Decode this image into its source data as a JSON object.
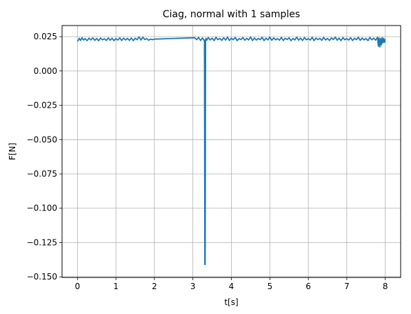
{
  "chart_data": {
    "type": "line",
    "title": "Ciag, normal with 1 samples",
    "xlabel": "t[s]",
    "ylabel": "F[N]",
    "xlim": [
      -0.4,
      8.4
    ],
    "ylim": [
      -0.1504,
      0.0331
    ],
    "grid": true,
    "x_ticks": [
      0,
      1,
      2,
      3,
      4,
      5,
      6,
      7,
      8
    ],
    "x_tick_labels": [
      "0",
      "1",
      "2",
      "3",
      "4",
      "5",
      "6",
      "7",
      "8"
    ],
    "y_ticks": [
      0.025,
      0.0,
      -0.025,
      -0.05,
      -0.075,
      -0.1,
      -0.125,
      -0.15
    ],
    "y_tick_labels": [
      "0.025",
      "0.000",
      "−0.025",
      "−0.050",
      "−0.075",
      "−0.100",
      "−0.125",
      "−0.150"
    ],
    "colors": {
      "series": "#1f77b4",
      "grid": "#b0b0b0"
    },
    "series": [
      {
        "x": [
          0.0,
          0.05,
          0.08,
          0.12,
          0.16,
          0.2,
          0.25,
          0.3,
          0.35,
          0.4,
          0.45,
          0.5,
          0.55,
          0.6,
          0.65,
          0.7,
          0.75,
          0.8,
          0.85,
          0.9,
          0.95,
          1.0,
          1.05,
          1.1,
          1.15,
          1.2,
          1.25,
          1.3,
          1.35,
          1.4,
          1.45,
          1.5,
          1.55,
          1.6,
          1.65,
          1.7,
          1.75,
          1.8,
          1.85,
          1.9,
          1.95,
          2.0,
          3.05,
          3.1,
          3.15,
          3.2,
          3.25,
          3.28,
          3.3,
          3.31,
          3.32,
          3.33,
          3.34,
          3.36,
          3.4,
          3.45,
          3.5,
          3.55,
          3.6,
          3.65,
          3.7,
          3.75,
          3.8,
          3.85,
          3.9,
          3.95,
          4.0,
          4.05,
          4.1,
          4.15,
          4.2,
          4.25,
          4.3,
          4.35,
          4.4,
          4.45,
          4.5,
          4.55,
          4.6,
          4.65,
          4.7,
          4.75,
          4.8,
          4.85,
          4.9,
          4.95,
          5.0,
          5.05,
          5.1,
          5.15,
          5.2,
          5.25,
          5.3,
          5.35,
          5.4,
          5.45,
          5.5,
          5.55,
          5.6,
          5.65,
          5.7,
          5.75,
          5.8,
          5.85,
          5.9,
          5.95,
          6.0,
          6.05,
          6.1,
          6.15,
          6.2,
          6.25,
          6.3,
          6.35,
          6.4,
          6.45,
          6.5,
          6.55,
          6.6,
          6.65,
          6.7,
          6.75,
          6.8,
          6.85,
          6.9,
          6.95,
          7.0,
          7.05,
          7.1,
          7.15,
          7.2,
          7.25,
          7.3,
          7.35,
          7.4,
          7.45,
          7.5,
          7.55,
          7.6,
          7.65,
          7.7,
          7.75,
          7.8,
          7.82,
          7.84,
          7.86,
          7.88,
          7.9,
          7.92,
          7.94,
          7.96,
          7.98,
          8.0
        ],
        "y": [
          0.0215,
          0.0238,
          0.0222,
          0.0242,
          0.0225,
          0.0236,
          0.0221,
          0.0239,
          0.0226,
          0.0241,
          0.0223,
          0.0237,
          0.022,
          0.024,
          0.0227,
          0.0235,
          0.0222,
          0.0241,
          0.0224,
          0.0238,
          0.0221,
          0.0236,
          0.0225,
          0.0241,
          0.0222,
          0.0239,
          0.0226,
          0.0237,
          0.0223,
          0.024,
          0.0221,
          0.0238,
          0.0228,
          0.0248,
          0.0225,
          0.0246,
          0.0229,
          0.0236,
          0.0224,
          0.0232,
          0.0228,
          0.0232,
          0.0242,
          0.0228,
          0.0244,
          0.0222,
          0.0241,
          0.0226,
          0.0225,
          -0.141,
          -0.141,
          0.0228,
          0.0238,
          0.0224,
          0.0243,
          0.0226,
          0.0239,
          0.0221,
          0.0245,
          0.0228,
          0.0237,
          0.0223,
          0.0242,
          0.0225,
          0.0246,
          0.0222,
          0.0239,
          0.0227,
          0.0244,
          0.0221,
          0.0236,
          0.0229,
          0.0243,
          0.0224,
          0.0238,
          0.0226,
          0.0247,
          0.0222,
          0.024,
          0.0225,
          0.0237,
          0.0228,
          0.0245,
          0.0221,
          0.0239,
          0.0226,
          0.0247,
          0.0223,
          0.0241,
          0.0227,
          0.0236,
          0.0224,
          0.0244,
          0.0222,
          0.0238,
          0.0229,
          0.0242,
          0.0221,
          0.0237,
          0.0226,
          0.0246,
          0.0224,
          0.0239,
          0.0222,
          0.0243,
          0.0227,
          0.0236,
          0.0225,
          0.0245,
          0.0221,
          0.024,
          0.0228,
          0.0238,
          0.0223,
          0.0244,
          0.0226,
          0.0237,
          0.0222,
          0.0241,
          0.0229,
          0.0246,
          0.0224,
          0.0239,
          0.0221,
          0.0243,
          0.0227,
          0.0236,
          0.0225,
          0.0242,
          0.0222,
          0.0238,
          0.0228,
          0.0245,
          0.0223,
          0.024,
          0.0226,
          0.0237,
          0.0221,
          0.0244,
          0.0227,
          0.0239,
          0.0224,
          0.0246,
          0.018,
          0.0241,
          0.0175,
          0.0236,
          0.019,
          0.0243,
          0.0205,
          0.0238,
          0.0208,
          0.0232
        ]
      }
    ]
  }
}
